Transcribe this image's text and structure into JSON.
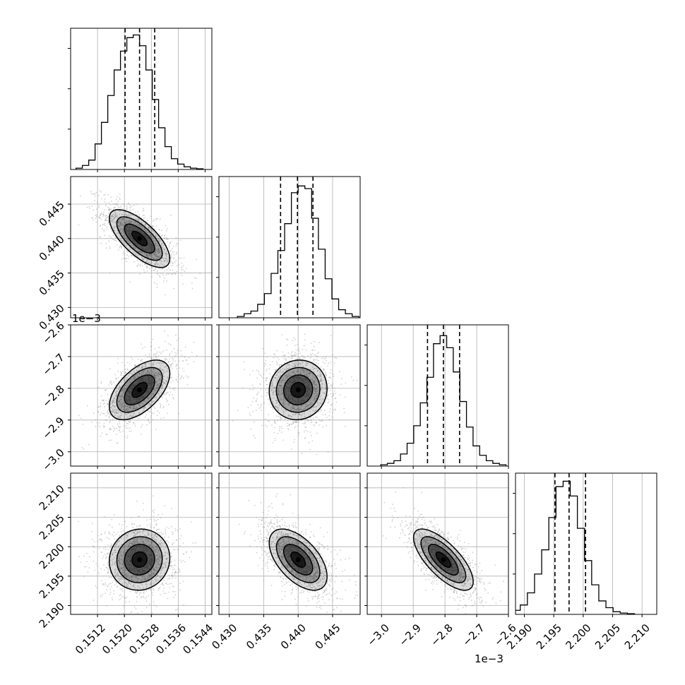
{
  "chart_data": {
    "type": "corner",
    "parameters": 4,
    "grid": true,
    "colors": {
      "line": "#000000",
      "scatter": "#9a9a9a",
      "grid": "#b0b0b0",
      "fill": "#000000"
    },
    "axes": [
      {
        "range": [
          0.1504,
          0.1546
        ],
        "ticks": [
          0.1512,
          0.152,
          0.1528,
          0.1536,
          0.1544
        ],
        "tick_labels": [
          "0.1512",
          "0.1520",
          "0.1528",
          "0.1536",
          "0.1544"
        ],
        "offset_label": "",
        "mean": 0.15245,
        "sd": 0.00045,
        "quantiles": [
          0.15202,
          0.15245,
          0.1529
        ],
        "histogram": [
          0.01,
          0.03,
          0.07,
          0.19,
          0.35,
          0.55,
          0.74,
          0.88,
          0.98,
          1.0,
          0.92,
          0.74,
          0.52,
          0.31,
          0.17,
          0.08,
          0.04,
          0.02,
          0.01,
          0.005
        ]
      },
      {
        "range": [
          0.4285,
          0.449
        ],
        "ticks": [
          0.43,
          0.435,
          0.44,
          0.445
        ],
        "tick_labels": [
          "0.430",
          "0.435",
          "0.440",
          "0.445"
        ],
        "offset_label": "",
        "mean": 0.44,
        "sd": 0.0021,
        "quantiles": [
          0.43745,
          0.4399,
          0.44215
        ],
        "histogram": [
          0.01,
          0.03,
          0.05,
          0.1,
          0.18,
          0.33,
          0.5,
          0.7,
          0.93,
          0.98,
          0.96,
          0.74,
          0.51,
          0.29,
          0.14,
          0.06,
          0.03,
          0.01
        ]
      },
      {
        "range": [
          -3.045,
          -2.6
        ],
        "ticks": [
          -3.0,
          -2.9,
          -2.8,
          -2.7,
          -2.6
        ],
        "tick_labels": [
          "−3.0",
          "−2.9",
          "−2.8",
          "−2.7",
          "−2.6"
        ],
        "offset_label": "1e−3",
        "mean": -2.805,
        "sd": 0.047,
        "quantiles": [
          -2.855,
          -2.805,
          -2.754
        ],
        "histogram": [
          0.01,
          0.02,
          0.04,
          0.09,
          0.17,
          0.3,
          0.47,
          0.66,
          0.91,
          0.97,
          0.88,
          0.7,
          0.48,
          0.29,
          0.15,
          0.08,
          0.04,
          0.02,
          0.01
        ]
      },
      {
        "range": [
          2.1885,
          2.2125
        ],
        "ticks": [
          2.19,
          2.195,
          2.2,
          2.205,
          2.21
        ],
        "tick_labels": [
          "2.190",
          "2.195",
          "2.200",
          "2.205",
          "2.210"
        ],
        "offset_label": "",
        "mean": 2.1978,
        "sd": 0.0026,
        "quantiles": [
          2.1952,
          2.1976,
          2.2004
        ],
        "histogram": [
          0.01,
          0.03,
          0.07,
          0.16,
          0.3,
          0.48,
          0.72,
          0.95,
          0.99,
          0.88,
          0.64,
          0.4,
          0.22,
          0.1,
          0.05,
          0.02,
          0.01,
          0.005
        ]
      }
    ],
    "correlations": [
      [
        1.0,
        -0.7,
        0.55,
        0.05
      ],
      [
        -0.7,
        1.0,
        0.05,
        -0.55
      ],
      [
        0.55,
        0.05,
        1.0,
        -0.72
      ],
      [
        0.05,
        -0.55,
        -0.72,
        1.0
      ]
    ],
    "contour_levels_sigma": [
      0.5,
      1.0,
      1.5,
      2.0
    ]
  }
}
